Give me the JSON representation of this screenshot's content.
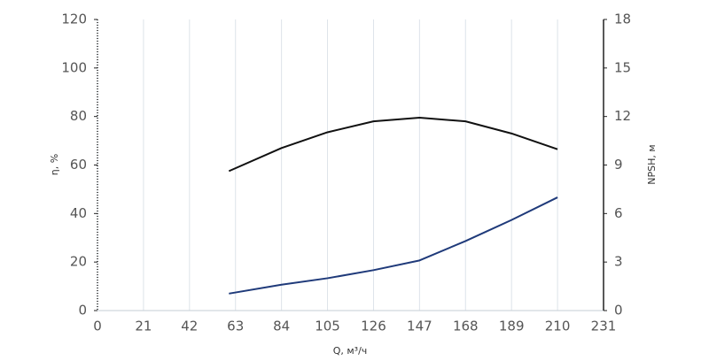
{
  "chart_data": {
    "type": "line",
    "xlabel": "Q, м³/ч",
    "ylabel": "η, %",
    "y2label": "NPSH, м",
    "x": [
      60,
      84,
      105,
      126,
      147,
      168,
      189,
      210
    ],
    "series": [
      {
        "color": "#111111",
        "values": [
          57.5,
          67,
          73.5,
          78,
          79.5,
          78,
          73,
          66.5
        ]
      },
      {
        "color": "#1f3a7a",
        "axis": "y2",
        "values": [
          1.05,
          1.6,
          2.0,
          2.5,
          3.1,
          4.3,
          5.6,
          7.0
        ]
      }
    ],
    "xlim": [
      0,
      231
    ],
    "xticks": [
      0,
      21,
      42,
      63,
      84,
      105,
      126,
      147,
      168,
      189,
      210,
      231
    ],
    "ylim": [
      0,
      120
    ],
    "yticks": [
      0,
      20,
      40,
      60,
      80,
      100,
      120
    ],
    "y2lim": [
      0,
      18
    ],
    "y2ticks": [
      0,
      3,
      6,
      9,
      12,
      15,
      18
    ],
    "grid": true
  }
}
